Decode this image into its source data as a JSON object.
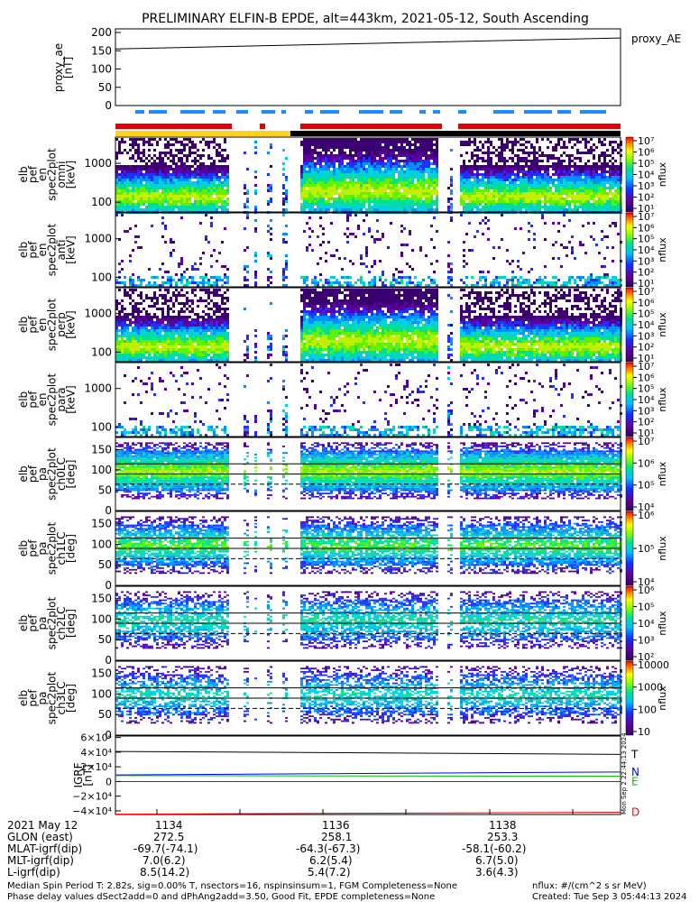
{
  "title": "PRELIMINARY ELFIN-B EPDE, alt=443km, 2021-05-12, South Ascending",
  "colors": {
    "bar_red": "#e60000",
    "bar_yellow": "#ffd21e",
    "bar_black": "#000000",
    "bar_blue": "#1e8cff",
    "igrf_T": "#000000",
    "igrf_N": "#0000ff",
    "igrf_E": "#00c000",
    "igrf_D": "#ff0000"
  },
  "chart_data": [
    {
      "type": "line",
      "id": "proxy_ae",
      "ylabel_lines": [
        "proxy_ae",
        "[nT]"
      ],
      "legend": "proxy_AE",
      "yticks": [
        "200",
        "150",
        "100",
        "50",
        "0"
      ],
      "ylim": [
        0,
        200
      ],
      "x": [
        0,
        1
      ],
      "values": [
        155,
        185
      ]
    },
    {
      "type": "heatmap",
      "id": "pef_en_spec2plot_omni",
      "ylabel_lines": [
        "elb",
        "pef",
        "en",
        "spec2plot",
        "omni",
        "[keV]"
      ],
      "yticks": [
        "1000",
        "100"
      ],
      "cbar_label": "nflux",
      "cbar_ticks": [
        "10¹",
        "10²",
        "10³",
        "10⁴",
        "10⁵",
        "10⁶",
        "10⁷"
      ]
    },
    {
      "type": "heatmap",
      "id": "pef_en_spec2plot_anti",
      "ylabel_lines": [
        "elb",
        "pef",
        "en",
        "spec2plot",
        "anti",
        "[keV]"
      ],
      "yticks": [
        "1000",
        "100"
      ],
      "cbar_label": "nflux",
      "cbar_ticks": [
        "10¹",
        "10²",
        "10³",
        "10⁴",
        "10⁵",
        "10⁶",
        "10⁷"
      ]
    },
    {
      "type": "heatmap",
      "id": "pef_en_spec2plot_perp",
      "ylabel_lines": [
        "elb",
        "pef",
        "en",
        "spec2plot",
        "perp",
        "[keV]"
      ],
      "yticks": [
        "1000",
        "100"
      ],
      "cbar_label": "nflux",
      "cbar_ticks": [
        "10¹",
        "10²",
        "10³",
        "10⁴",
        "10⁵",
        "10⁶",
        "10⁷"
      ]
    },
    {
      "type": "heatmap",
      "id": "pef_en_spec2plot_para",
      "ylabel_lines": [
        "elb",
        "pef",
        "en",
        "spec2plot",
        "para",
        "[keV]"
      ],
      "yticks": [
        "1000",
        "100"
      ],
      "cbar_label": "nflux",
      "cbar_ticks": [
        "10¹",
        "10²",
        "10³",
        "10⁴",
        "10⁵",
        "10⁶",
        "10⁷"
      ]
    },
    {
      "type": "heatmap",
      "id": "pef_pa_spec2plot_ch0LC",
      "ylabel_lines": [
        "elb",
        "pef",
        "pa",
        "spec2plot",
        "ch0LC",
        "[deg]"
      ],
      "yticks": [
        "150",
        "100",
        "50",
        "0"
      ],
      "cbar_label": "nflux",
      "cbar_ticks": [
        "10⁴",
        "10⁵",
        "10⁶",
        "10⁷"
      ]
    },
    {
      "type": "heatmap",
      "id": "pef_pa_spec2plot_ch1LC",
      "ylabel_lines": [
        "elb",
        "pef",
        "pa",
        "spec2plot",
        "ch1LC",
        "[deg]"
      ],
      "yticks": [
        "150",
        "100",
        "50",
        "0"
      ],
      "cbar_label": "nflux",
      "cbar_ticks": [
        "10⁴",
        "10⁵",
        "10⁶"
      ]
    },
    {
      "type": "heatmap",
      "id": "pef_pa_spec2plot_ch2LC",
      "ylabel_lines": [
        "elb",
        "pef",
        "pa",
        "spec2plot",
        "ch2LC",
        "[deg]"
      ],
      "yticks": [
        "150",
        "100",
        "50",
        "0"
      ],
      "cbar_label": "nflux",
      "cbar_ticks": [
        "10²",
        "10³",
        "10⁴",
        "10⁵",
        "10⁶"
      ]
    },
    {
      "type": "heatmap",
      "id": "pef_pa_spec2plot_ch3LC",
      "ylabel_lines": [
        "elb",
        "pef",
        "pa",
        "spec2plot",
        "ch3LC",
        "[deg]"
      ],
      "yticks": [
        "150",
        "100",
        "50",
        "0"
      ],
      "cbar_label": "nflux",
      "cbar_ticks": [
        "10",
        "100",
        "1000",
        "10000"
      ]
    },
    {
      "type": "line",
      "id": "igrf",
      "ylabel_lines": [
        "IGRF",
        "[nT]"
      ],
      "yticks": [
        "6×10⁴",
        "4×10⁴",
        "2×10⁴",
        "0",
        "−2×10⁴",
        "−4×10⁴"
      ],
      "ylim": [
        -45000,
        62000
      ],
      "x": [
        0,
        1
      ],
      "series": [
        {
          "name": "T",
          "values": [
            41000,
            37000
          ]
        },
        {
          "name": "N",
          "values": [
            9000,
            13000
          ]
        },
        {
          "name": "E",
          "values": [
            8000,
            7200
          ]
        },
        {
          "name": "D",
          "values": [
            -44500,
            -42000
          ]
        }
      ],
      "side_label": "Mon Sep  2 22:44:13 2024"
    }
  ],
  "footer": {
    "date": "2021 May 12",
    "times": [
      "1134",
      "1136",
      "1138"
    ],
    "rows": [
      {
        "label": "GLON (east)",
        "values": [
          "272.5",
          "258.1",
          "253.3"
        ]
      },
      {
        "label": "MLAT-igrf(dip)",
        "values": [
          "-69.7(-74.1)",
          "-64.3(-67.3)",
          "-58.1(-60.2)"
        ]
      },
      {
        "label": "MLT-igrf(dip)",
        "values": [
          "7.0(6.2)",
          "6.2(5.4)",
          "6.7(5.0)"
        ]
      },
      {
        "label": "L-igrf(dip)",
        "values": [
          "8.5(14.2)",
          "5.4(7.2)",
          "3.6(4.3)"
        ]
      }
    ],
    "note1": "Median Spin Period T: 2.82s, sig=0.00% T, nsectors=16, nspinsinsum=1, FGM Completeness=None",
    "note2": "Phase delay values dSect2add=0 and dPhAng2add=3.50, Good Fit, EPDE completeness=None",
    "units": "nflux: #/(cm^2 s sr MeV)",
    "created": "Created: Tue Sep  3 05:44:13 2024"
  }
}
